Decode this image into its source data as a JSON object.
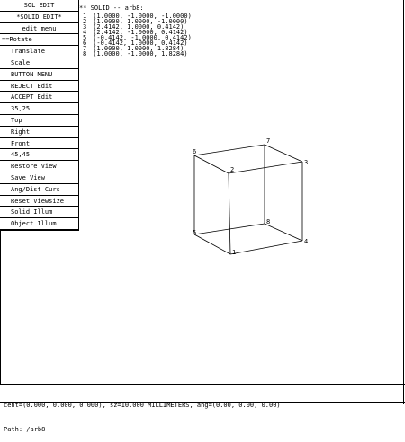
{
  "menu": {
    "title": "SOL EDIT",
    "items": [
      {
        "label": "*SOLID EDIT*",
        "style": "center"
      },
      {
        "label": "edit menu",
        "style": "center"
      },
      {
        "label": "Rotate",
        "style": "selected"
      },
      {
        "label": "Translate",
        "style": "indent"
      },
      {
        "label": "Scale",
        "style": "indent"
      },
      {
        "label": "BUTTON MENU",
        "style": "indent"
      },
      {
        "label": "REJECT Edit",
        "style": "indent"
      },
      {
        "label": "ACCEPT Edit",
        "style": "indent"
      },
      {
        "label": "35,25",
        "style": "indent"
      },
      {
        "label": "Top",
        "style": "indent"
      },
      {
        "label": "Right",
        "style": "indent"
      },
      {
        "label": "Front",
        "style": "indent"
      },
      {
        "label": "45,45",
        "style": "indent"
      },
      {
        "label": "Restore View",
        "style": "indent"
      },
      {
        "label": "Save View",
        "style": "indent"
      },
      {
        "label": "Ang/Dist Curs",
        "style": "indent"
      },
      {
        "label": "Reset Viewsize",
        "style": "indent"
      },
      {
        "label": "Solid Illum",
        "style": "indent"
      },
      {
        "label": "Object Illum",
        "style": "indent"
      }
    ],
    "selected_marker": "=="
  },
  "solid": {
    "header": "** SOLID -- arb8:",
    "vertices": [
      {
        "num": "1",
        "coords": "(1.0000, -1.0000, -1.0000)"
      },
      {
        "num": "2",
        "coords": "(1.0000, 1.0000, -1.0000)"
      },
      {
        "num": "3",
        "coords": "(2.4142, 1.0000, 0.4142)"
      },
      {
        "num": "4",
        "coords": "(2.4142, -1.0000, 0.4142)"
      },
      {
        "num": "5",
        "coords": "(-0.4142, -1.0000, 0.4142)"
      },
      {
        "num": "6",
        "coords": "(-0.4142, 1.0000, 0.4142)"
      },
      {
        "num": "7",
        "coords": "(1.0000, 1.0000, 1.8284)"
      },
      {
        "num": "8",
        "coords": "(1.0000, -1.0000, 1.8284)"
      }
    ]
  },
  "viewer_labels": [
    "1",
    "2",
    "3",
    "4",
    "5",
    "6",
    "7",
    "8"
  ],
  "status": {
    "line1": "cent=(0.000, 0.000, 0.000), sz=10.000 MILLIMETERS, ang=(0.00, 0.00, 0.00)",
    "line2": "Path: /arb8"
  }
}
